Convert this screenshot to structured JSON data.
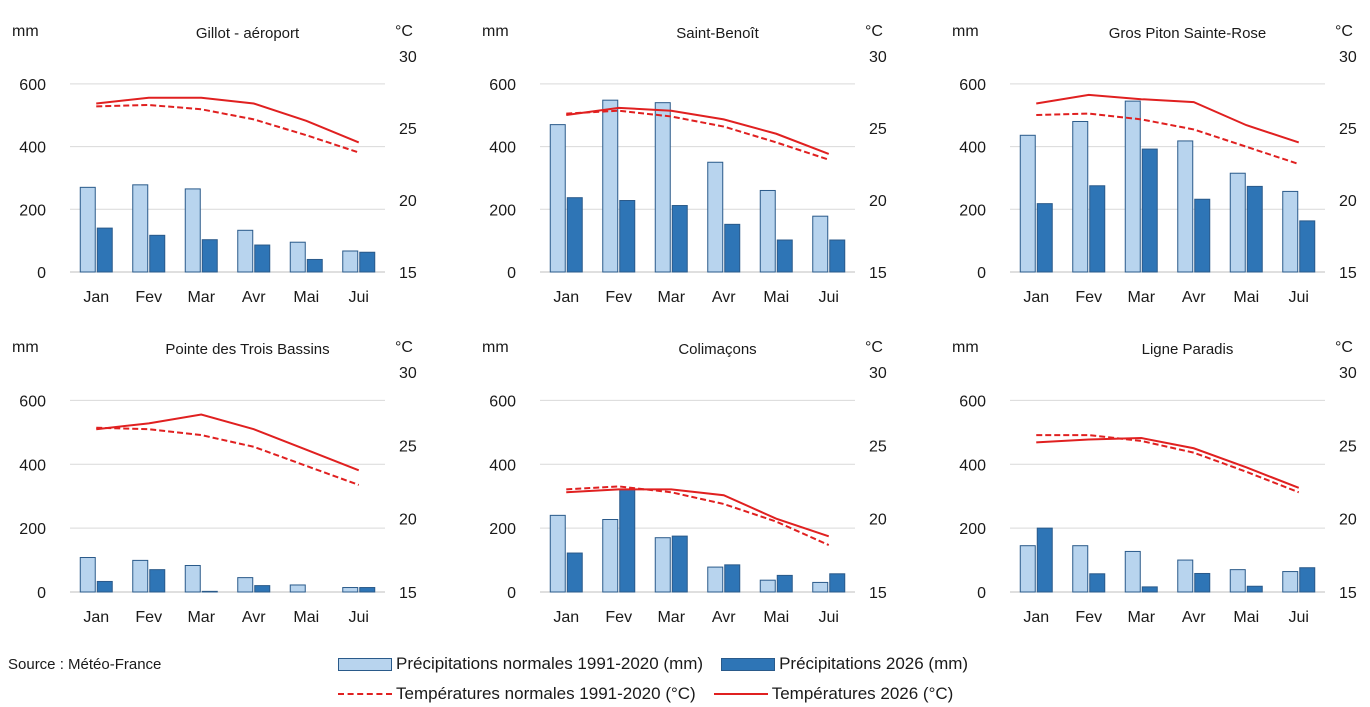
{
  "source": "Source : Météo-France",
  "colors": {
    "normal_bar": "#b8d4ee",
    "actual_bar": "#2e75b6",
    "bar_outline": "#2a5a8a",
    "temp_line": "#e02020",
    "grid": "#d9d9d9"
  },
  "legend": {
    "precip_normal": "Précipitations normales 1991-2020 (mm)",
    "precip_2026": "Précipitations 2026 (mm)",
    "temp_normal": "Températures normales 1991-2020 (°C)",
    "temp_2026": "Températures 2026 (°C)"
  },
  "chart_data": [
    {
      "type": "bar",
      "title": "Gillot - aéroport",
      "ylabel": "mm",
      "y2label": "°C",
      "categories": [
        "Jan",
        "Fev",
        "Mar",
        "Avr",
        "Mai",
        "Jui"
      ],
      "ylim": [
        0,
        600
      ],
      "yticks": [
        0,
        200,
        400,
        600
      ],
      "y2lim": [
        15,
        30
      ],
      "y2ticks": [
        15,
        20,
        25,
        30
      ],
      "series": [
        {
          "name": "Précipitations normales 1991-2020 (mm)",
          "kind": "bar",
          "values": [
            270,
            278,
            265,
            133,
            95,
            67
          ]
        },
        {
          "name": "Précipitations 2026 (mm)",
          "kind": "bar",
          "values": [
            140,
            117,
            103,
            86,
            40,
            63
          ]
        },
        {
          "name": "Températures normales 1991-2020 (°C)",
          "kind": "line",
          "axis": "y2",
          "values": [
            26.5,
            26.6,
            26.3,
            25.6,
            24.5,
            23.3
          ]
        },
        {
          "name": "Températures 2026 (°C)",
          "kind": "line",
          "axis": "y2",
          "values": [
            26.7,
            27.1,
            27.1,
            26.7,
            25.5,
            24.0
          ]
        }
      ]
    },
    {
      "type": "bar",
      "title": "Saint-Benoît",
      "ylabel": "mm",
      "y2label": "°C",
      "categories": [
        "Jan",
        "Fev",
        "Mar",
        "Avr",
        "Mai",
        "Jui"
      ],
      "ylim": [
        0,
        600
      ],
      "yticks": [
        0,
        200,
        400,
        600
      ],
      "y2lim": [
        15,
        30
      ],
      "y2ticks": [
        15,
        20,
        25,
        30
      ],
      "series": [
        {
          "name": "Précipitations normales 1991-2020 (mm)",
          "kind": "bar",
          "values": [
            470,
            548,
            540,
            350,
            260,
            178
          ]
        },
        {
          "name": "Précipitations 2026 (mm)",
          "kind": "bar",
          "values": [
            237,
            228,
            212,
            152,
            102,
            102
          ]
        },
        {
          "name": "Températures normales 1991-2020 (°C)",
          "kind": "line",
          "axis": "y2",
          "values": [
            26.0,
            26.2,
            25.8,
            25.1,
            24.0,
            22.8
          ]
        },
        {
          "name": "Températures 2026 (°C)",
          "kind": "line",
          "axis": "y2",
          "values": [
            25.9,
            26.4,
            26.2,
            25.6,
            24.6,
            23.2
          ]
        }
      ]
    },
    {
      "type": "bar",
      "title": "Gros Piton Sainte-Rose",
      "ylabel": "mm",
      "y2label": "°C",
      "categories": [
        "Jan",
        "Fev",
        "Mar",
        "Avr",
        "Mai",
        "Jui"
      ],
      "ylim": [
        0,
        600
      ],
      "yticks": [
        0,
        200,
        400,
        600
      ],
      "y2lim": [
        15,
        30
      ],
      "y2ticks": [
        15,
        20,
        25,
        30
      ],
      "series": [
        {
          "name": "Précipitations normales 1991-2020 (mm)",
          "kind": "bar",
          "values": [
            436,
            480,
            545,
            418,
            315,
            257
          ]
        },
        {
          "name": "Précipitations 2026 (mm)",
          "kind": "bar",
          "values": [
            218,
            275,
            392,
            232,
            273,
            163
          ]
        },
        {
          "name": "Températures normales 1991-2020 (°C)",
          "kind": "line",
          "axis": "y2",
          "values": [
            25.9,
            26.0,
            25.6,
            24.9,
            23.7,
            22.5
          ]
        },
        {
          "name": "Températures 2026 (°C)",
          "kind": "line",
          "axis": "y2",
          "values": [
            26.7,
            27.3,
            27.0,
            26.8,
            25.2,
            24.0
          ]
        }
      ]
    },
    {
      "type": "bar",
      "title": "Pointe des Trois Bassins",
      "ylabel": "mm",
      "y2label": "°C",
      "categories": [
        "Jan",
        "Fev",
        "Mar",
        "Avr",
        "Mai",
        "Jui"
      ],
      "ylim": [
        0,
        600
      ],
      "yticks": [
        0,
        200,
        400,
        600
      ],
      "y2lim": [
        15,
        30
      ],
      "y2ticks": [
        15,
        20,
        25,
        30
      ],
      "series": [
        {
          "name": "Précipitations normales 1991-2020 (mm)",
          "kind": "bar",
          "values": [
            108,
            99,
            83,
            45,
            22,
            14
          ]
        },
        {
          "name": "Précipitations 2026 (mm)",
          "kind": "bar",
          "values": [
            33,
            70,
            2,
            20,
            0,
            14
          ]
        },
        {
          "name": "Températures normales 1991-2020 (°C)",
          "kind": "line",
          "axis": "y2",
          "values": [
            26.2,
            26.1,
            25.7,
            24.9,
            23.6,
            22.3
          ]
        },
        {
          "name": "Températures 2026 (°C)",
          "kind": "line",
          "axis": "y2",
          "values": [
            26.1,
            26.5,
            27.1,
            26.1,
            24.7,
            23.3
          ]
        }
      ]
    },
    {
      "type": "bar",
      "title": "Colimaçons",
      "ylabel": "mm",
      "y2label": "°C",
      "categories": [
        "Jan",
        "Fev",
        "Mar",
        "Avr",
        "Mai",
        "Jui"
      ],
      "ylim": [
        0,
        600
      ],
      "yticks": [
        0,
        200,
        400,
        600
      ],
      "y2lim": [
        15,
        30
      ],
      "y2ticks": [
        15,
        20,
        25,
        30
      ],
      "series": [
        {
          "name": "Précipitations normales 1991-2020 (mm)",
          "kind": "bar",
          "values": [
            240,
            227,
            170,
            78,
            37,
            30
          ]
        },
        {
          "name": "Précipitations 2026 (mm)",
          "kind": "bar",
          "values": [
            122,
            322,
            175,
            85,
            52,
            57
          ]
        },
        {
          "name": "Températures normales 1991-2020 (°C)",
          "kind": "line",
          "axis": "y2",
          "values": [
            22.0,
            22.2,
            21.8,
            21.0,
            19.8,
            18.2
          ]
        },
        {
          "name": "Températures 2026 (°C)",
          "kind": "line",
          "axis": "y2",
          "values": [
            21.8,
            22.0,
            22.0,
            21.6,
            20.0,
            18.8
          ]
        }
      ]
    },
    {
      "type": "bar",
      "title": "Ligne Paradis",
      "ylabel": "mm",
      "y2label": "°C",
      "categories": [
        "Jan",
        "Fev",
        "Mar",
        "Avr",
        "Mai",
        "Jui"
      ],
      "ylim": [
        0,
        600
      ],
      "yticks": [
        0,
        200,
        400,
        600
      ],
      "y2lim": [
        15,
        30
      ],
      "y2ticks": [
        15,
        20,
        25,
        30
      ],
      "series": [
        {
          "name": "Précipitations normales 1991-2020 (mm)",
          "kind": "bar",
          "values": [
            145,
            145,
            127,
            100,
            70,
            64
          ]
        },
        {
          "name": "Précipitations 2026 (mm)",
          "kind": "bar",
          "values": [
            200,
            57,
            16,
            58,
            18,
            76
          ]
        },
        {
          "name": "Températures normales 1991-2020 (°C)",
          "kind": "line",
          "axis": "y2",
          "values": [
            25.7,
            25.7,
            25.3,
            24.5,
            23.2,
            21.8
          ]
        },
        {
          "name": "Températures 2026 (°C)",
          "kind": "line",
          "axis": "y2",
          "values": [
            25.2,
            25.4,
            25.5,
            24.8,
            23.5,
            22.1
          ]
        }
      ]
    }
  ]
}
